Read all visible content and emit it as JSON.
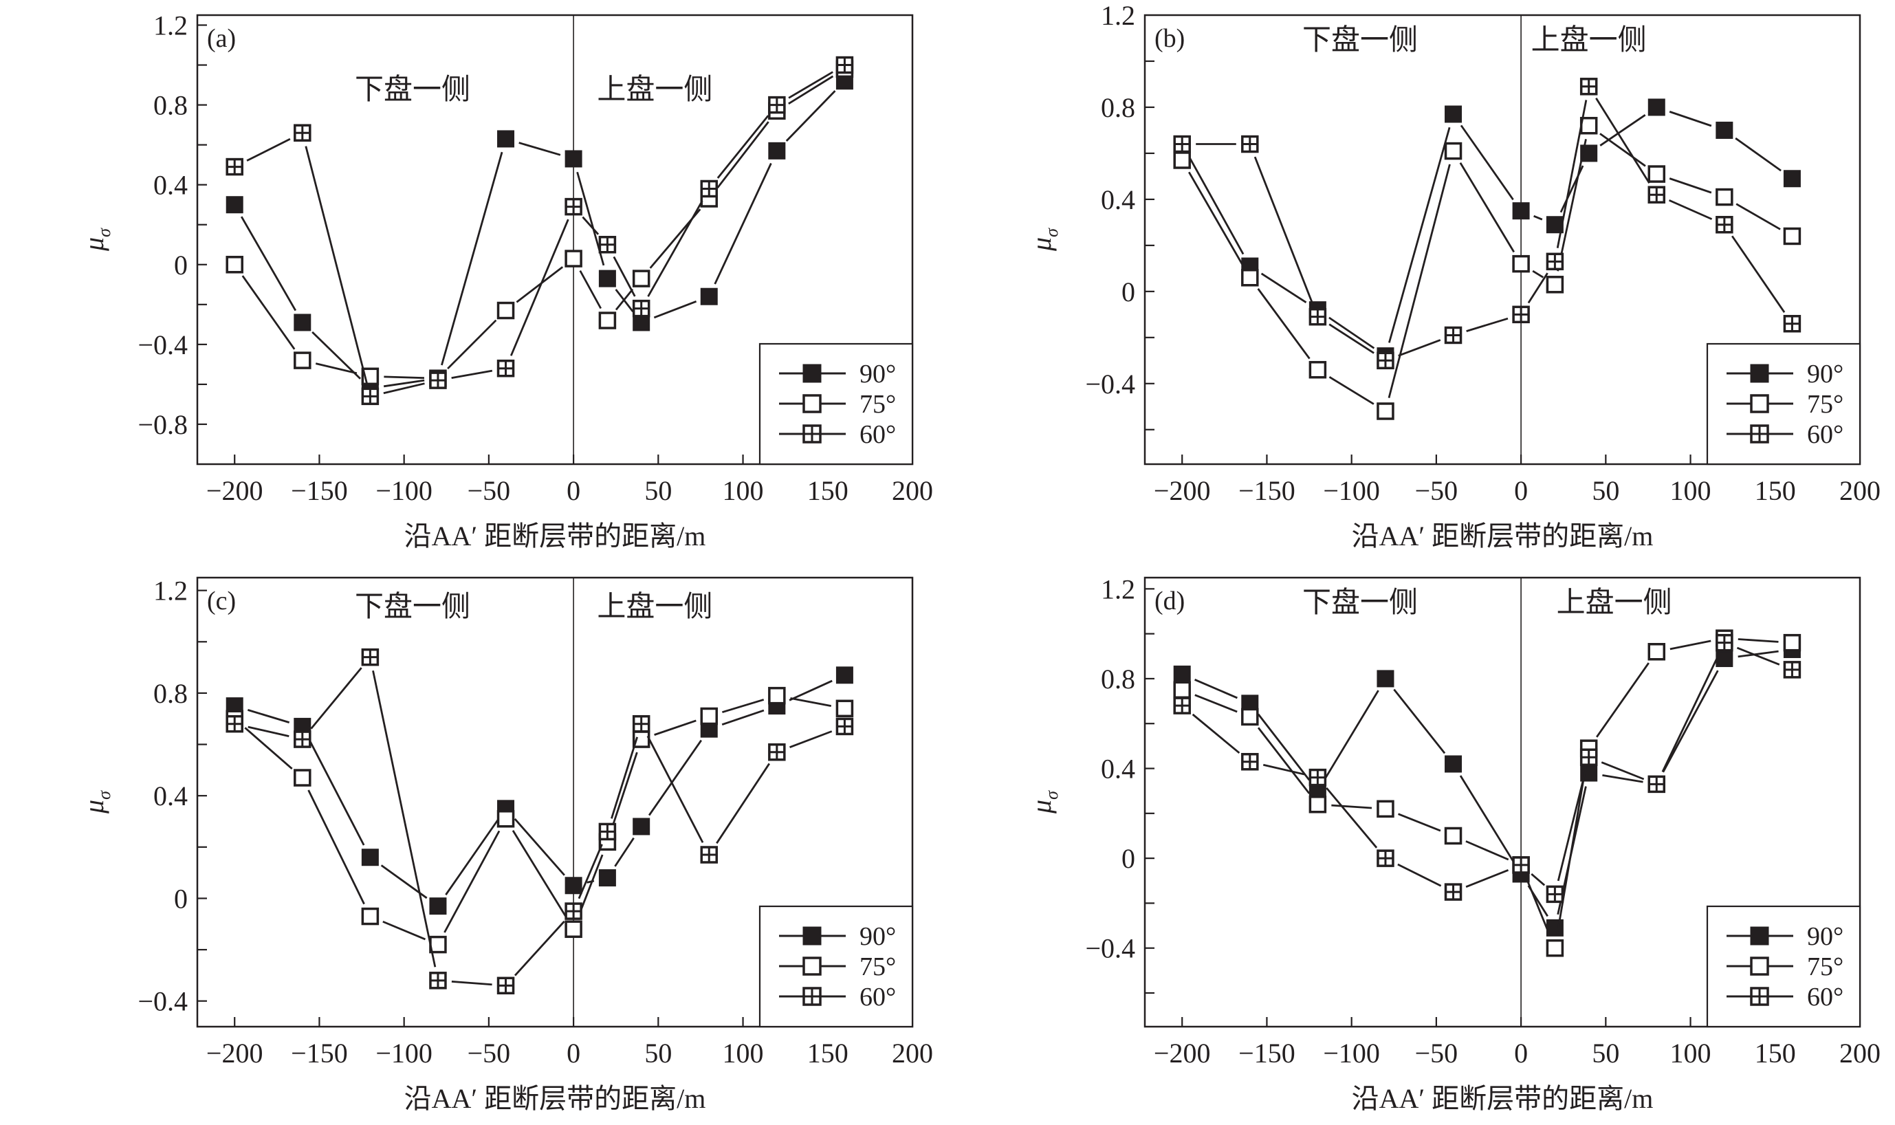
{
  "figure": {
    "x_axis_title": "沿AA′ 距断层带的距离/m",
    "y_axis_title_main": "μ",
    "y_axis_title_sub": "σ",
    "footwall_label": "下盘一侧",
    "hanging_wall_label": "上盘一侧",
    "legend": [
      {
        "label": "90°",
        "marker": "filled-square"
      },
      {
        "label": "75°",
        "marker": "open-square"
      },
      {
        "label": "60°",
        "marker": "crossed-square"
      }
    ],
    "line_color": "#231f20"
  },
  "chart_data": [
    {
      "panel": "(a)",
      "type": "line",
      "xlabel": "沿AA′ 距断层带的距离/m",
      "ylabel": "μσ",
      "x": [
        -200,
        -160,
        -120,
        -80,
        -40,
        0,
        20,
        40,
        80,
        120,
        160
      ],
      "xlim": [
        -222,
        200
      ],
      "ylim": [
        -1.0,
        1.25
      ],
      "xticks": [
        -200,
        -150,
        -100,
        -50,
        0,
        50,
        100,
        150,
        200
      ],
      "xtick_labels": [
        "−200",
        "−150",
        "−100",
        "−50",
        "0",
        "50",
        "100",
        "150",
        "200"
      ],
      "yticks": [
        1.2,
        0.8,
        0.4,
        0,
        -0.4,
        -0.8
      ],
      "ytick_labels": [
        "1.2",
        "0.8",
        "0.4",
        "0",
        "−0.4",
        "−0.8"
      ],
      "minor_ytick_step": 0.2,
      "divider_x": 0,
      "annotations": [
        "下盘一侧",
        "上盘一侧"
      ],
      "legend_position": "bottom-right",
      "series": [
        {
          "name": "90°",
          "marker": "filled-square",
          "values": [
            0.3,
            -0.29,
            -0.62,
            -0.57,
            0.63,
            0.53,
            -0.07,
            -0.29,
            -0.16,
            0.57,
            0.92
          ]
        },
        {
          "name": "75°",
          "marker": "open-square",
          "values": [
            0.0,
            -0.48,
            -0.56,
            -0.57,
            -0.23,
            0.03,
            -0.28,
            -0.07,
            0.33,
            0.77,
            0.98
          ]
        },
        {
          "name": "60°",
          "marker": "crossed-square",
          "values": [
            0.49,
            0.66,
            -0.66,
            -0.58,
            -0.52,
            0.29,
            0.1,
            -0.22,
            0.38,
            0.8,
            1.0
          ]
        }
      ]
    },
    {
      "panel": "(b)",
      "type": "line",
      "xlabel": "沿AA′ 距断层带的距离/m",
      "ylabel": "μσ",
      "x": [
        -200,
        -160,
        -120,
        -80,
        -40,
        0,
        20,
        40,
        80,
        120,
        160
      ],
      "xlim": [
        -222,
        200
      ],
      "ylim": [
        -0.75,
        1.2
      ],
      "xticks": [
        -200,
        -150,
        -100,
        -50,
        0,
        50,
        100,
        150,
        200
      ],
      "xtick_labels": [
        "−200",
        "−150",
        "−100",
        "−50",
        "0",
        "50",
        "100",
        "150",
        "200"
      ],
      "yticks": [
        1.2,
        0.8,
        0.4,
        0,
        -0.4
      ],
      "ytick_labels": [
        "1.2",
        "0.8",
        "0.4",
        "0",
        "−0.4"
      ],
      "minor_ytick_step": 0.2,
      "divider_x": 0,
      "annotations": [
        "下盘一侧",
        "上盘一侧"
      ],
      "legend_position": "bottom-right",
      "series": [
        {
          "name": "90°",
          "marker": "filled-square",
          "values": [
            0.64,
            0.11,
            -0.08,
            -0.28,
            0.77,
            0.35,
            0.29,
            0.6,
            0.8,
            0.7,
            0.49
          ]
        },
        {
          "name": "75°",
          "marker": "open-square",
          "values": [
            0.57,
            0.06,
            -0.34,
            -0.52,
            0.61,
            0.12,
            0.03,
            0.72,
            0.51,
            0.41,
            0.24
          ]
        },
        {
          "name": "60°",
          "marker": "crossed-square",
          "values": [
            0.64,
            0.64,
            -0.11,
            -0.3,
            -0.19,
            -0.1,
            0.13,
            0.89,
            0.42,
            0.29,
            -0.14
          ]
        }
      ]
    },
    {
      "panel": "(c)",
      "type": "line",
      "xlabel": "沿AA′ 距断层带的距离/m",
      "ylabel": "μσ",
      "x": [
        -200,
        -160,
        -120,
        -80,
        -40,
        0,
        20,
        40,
        80,
        120,
        160
      ],
      "xlim": [
        -222,
        200
      ],
      "ylim": [
        -0.5,
        1.25
      ],
      "xticks": [
        -200,
        -150,
        -100,
        -50,
        0,
        50,
        100,
        150,
        200
      ],
      "xtick_labels": [
        "−200",
        "−150",
        "−100",
        "−50",
        "0",
        "50",
        "100",
        "150",
        "200"
      ],
      "yticks": [
        1.2,
        0.8,
        0.4,
        0,
        -0.4
      ],
      "ytick_labels": [
        "1.2",
        "0.8",
        "0.4",
        "0",
        "−0.4"
      ],
      "minor_ytick_step": 0.2,
      "divider_x": 0,
      "annotations": [
        "下盘一侧",
        "上盘一侧"
      ],
      "legend_position": "bottom-right",
      "series": [
        {
          "name": "90°",
          "marker": "filled-square",
          "values": [
            0.75,
            0.67,
            0.16,
            -0.03,
            0.35,
            0.05,
            0.08,
            0.28,
            0.66,
            0.75,
            0.87
          ]
        },
        {
          "name": "75°",
          "marker": "open-square",
          "values": [
            0.7,
            0.47,
            -0.07,
            -0.18,
            0.31,
            -0.12,
            0.22,
            0.62,
            0.71,
            0.79,
            0.74
          ]
        },
        {
          "name": "60°",
          "marker": "crossed-square",
          "values": [
            0.68,
            0.62,
            0.94,
            -0.32,
            -0.34,
            -0.05,
            0.26,
            0.68,
            0.17,
            0.57,
            0.67
          ]
        }
      ]
    },
    {
      "panel": "(d)",
      "type": "line",
      "xlabel": "沿AA′ 距断层带的距离/m",
      "ylabel": "μσ",
      "x": [
        -200,
        -160,
        -120,
        -80,
        -40,
        0,
        20,
        40,
        80,
        120,
        160
      ],
      "xlim": [
        -222,
        200
      ],
      "ylim": [
        -0.75,
        1.25
      ],
      "xticks": [
        -200,
        -150,
        -100,
        -50,
        0,
        50,
        100,
        150,
        200
      ],
      "xtick_labels": [
        "−200",
        "−150",
        "−100",
        "−50",
        "0",
        "50",
        "100",
        "150",
        "200"
      ],
      "yticks": [
        1.2,
        0.8,
        0.4,
        0,
        -0.4
      ],
      "ytick_labels": [
        "1.2",
        "0.8",
        "0.4",
        "0",
        "−0.4"
      ],
      "minor_ytick_step": 0.2,
      "divider_x": 0,
      "annotations": [
        "下盘一侧",
        "上盘一侧"
      ],
      "legend_position": "bottom-right",
      "series": [
        {
          "name": "90°",
          "marker": "filled-square",
          "values": [
            0.82,
            0.69,
            0.3,
            0.8,
            0.42,
            -0.07,
            -0.31,
            0.38,
            0.33,
            0.89,
            0.93
          ]
        },
        {
          "name": "75°",
          "marker": "open-square",
          "values": [
            0.75,
            0.63,
            0.24,
            0.22,
            0.1,
            -0.03,
            -0.4,
            0.49,
            0.92,
            0.98,
            0.96
          ]
        },
        {
          "name": "60°",
          "marker": "crossed-square",
          "values": [
            0.68,
            0.43,
            0.36,
            0.0,
            -0.15,
            -0.03,
            -0.16,
            0.45,
            0.33,
            0.96,
            0.84
          ]
        }
      ]
    }
  ]
}
